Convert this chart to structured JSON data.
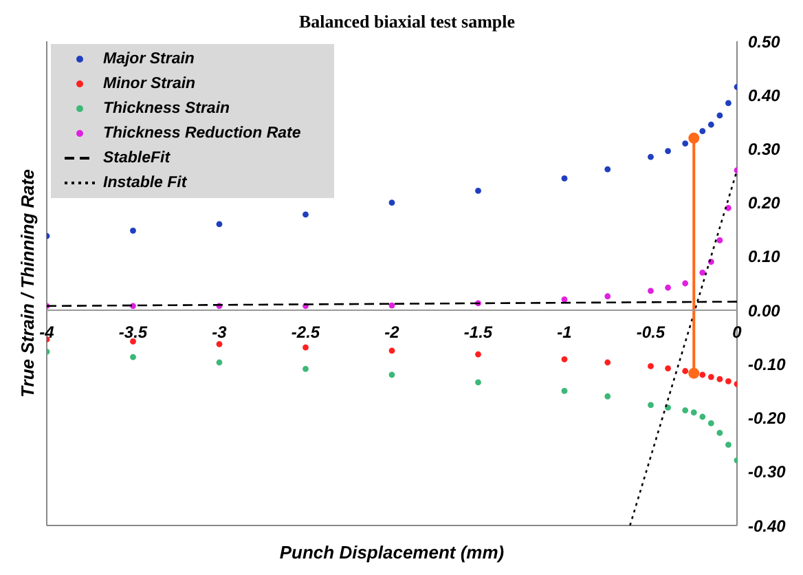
{
  "chart_data": {
    "type": "scatter",
    "title": "Balanced biaxial test sample",
    "xlabel": "Punch Displacement (mm)",
    "ylabel": "True Strain / Thinning Rate",
    "xlim": [
      -4,
      0
    ],
    "xticks": [
      -4,
      -3.5,
      -3,
      -2.5,
      -2,
      -1.5,
      -1,
      -0.5,
      0
    ],
    "ylim": [
      -0.4,
      0.5
    ],
    "yticks": [
      {
        "value": -0.4,
        "label": "-0.40"
      },
      {
        "value": -0.3,
        "label": "-0.30"
      },
      {
        "value": -0.2,
        "label": "-0.20"
      },
      {
        "value": -0.1,
        "label": "-0.10"
      },
      {
        "value": 0,
        "label": "0.00"
      },
      {
        "value": 0.1,
        "label": "0.10"
      },
      {
        "value": 0.2,
        "label": "0.20"
      },
      {
        "value": 0.3,
        "label": "0.30"
      },
      {
        "value": 0.4,
        "label": "0.40"
      },
      {
        "value": 0.5,
        "label": "0.50"
      }
    ],
    "grid": false,
    "legend": "top left",
    "marker": "circle",
    "series": [
      {
        "name": "Major Strain",
        "color": "#1f3fbf",
        "x": [
          -4,
          -3.5,
          -3,
          -2.5,
          -2,
          -1.5,
          -1,
          -0.75,
          -0.5,
          -0.4,
          -0.3,
          -0.2,
          -0.15,
          -0.1,
          -0.05,
          0
        ],
        "values": [
          0.138,
          0.148,
          0.16,
          0.178,
          0.2,
          0.222,
          0.245,
          0.262,
          0.285,
          0.296,
          0.31,
          0.333,
          0.345,
          0.362,
          0.385,
          0.415
        ]
      },
      {
        "name": "Minor Strain",
        "color": "#ff2020",
        "x": [
          -4,
          -3.5,
          -3,
          -2.5,
          -2,
          -1.5,
          -1,
          -0.75,
          -0.5,
          -0.4,
          -0.3,
          -0.2,
          -0.15,
          -0.1,
          -0.05,
          0
        ],
        "values": [
          -0.054,
          -0.058,
          -0.063,
          -0.069,
          -0.075,
          -0.082,
          -0.091,
          -0.097,
          -0.104,
          -0.108,
          -0.113,
          -0.12,
          -0.124,
          -0.128,
          -0.132,
          -0.137
        ]
      },
      {
        "name": "Thickness Strain",
        "color": "#3cb878",
        "x": [
          -4,
          -3.5,
          -3,
          -2.5,
          -2,
          -1.5,
          -1,
          -0.75,
          -0.5,
          -0.4,
          -0.3,
          -0.25,
          -0.2,
          -0.15,
          -0.1,
          -0.05,
          0
        ],
        "values": [
          -0.077,
          -0.087,
          -0.097,
          -0.109,
          -0.12,
          -0.134,
          -0.15,
          -0.16,
          -0.176,
          -0.181,
          -0.186,
          -0.19,
          -0.198,
          -0.21,
          -0.228,
          -0.25,
          -0.279
        ]
      },
      {
        "name": "Thickness Reduction Rate",
        "color": "#e020e0",
        "x": [
          -4,
          -3.5,
          -3,
          -2.5,
          -2,
          -1.5,
          -1,
          -0.75,
          -0.5,
          -0.4,
          -0.3,
          -0.2,
          -0.15,
          -0.1,
          -0.05,
          0
        ],
        "values": [
          0.008,
          0.008,
          0.008,
          0.008,
          0.009,
          0.013,
          0.02,
          0.026,
          0.036,
          0.042,
          0.05,
          0.07,
          0.09,
          0.13,
          0.19,
          0.26
        ]
      },
      {
        "name": "StableFit",
        "type": "line",
        "marker": "none",
        "line_style": "dashed",
        "color": "#000000",
        "x": [
          -4,
          0
        ],
        "values": [
          0.008,
          0.016
        ]
      },
      {
        "name": "Instable Fit",
        "type": "line",
        "marker": "none",
        "line_style": "dotted",
        "color": "#000000",
        "x": [
          -0.62,
          0
        ],
        "values": [
          -0.4,
          0.26
        ]
      },
      {
        "type": "line",
        "marker": "circle",
        "line_style": "solid",
        "color": "#ff6a1a",
        "x": [
          -0.25,
          -0.25
        ],
        "values": [
          -0.117,
          0.32
        ]
      }
    ]
  }
}
